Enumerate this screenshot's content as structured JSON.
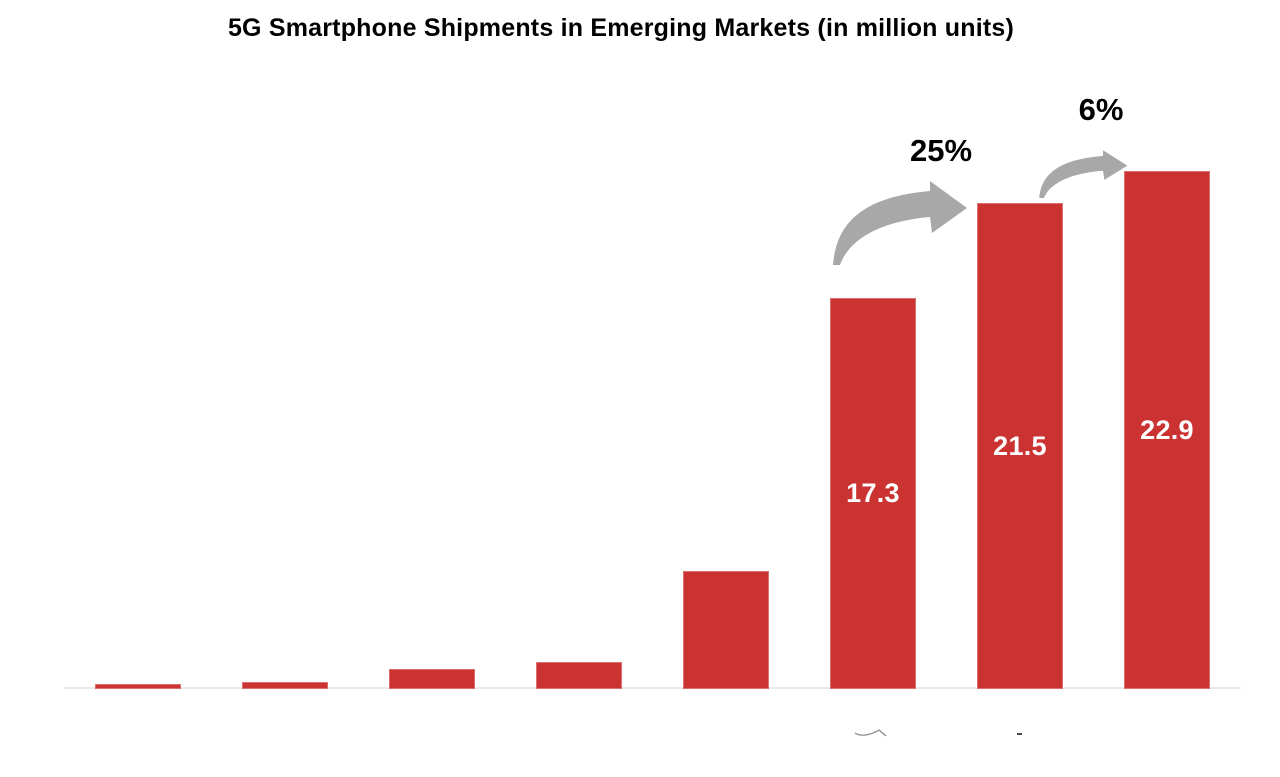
{
  "title": "5G Smartphone Shipments in Emerging Markets (in million units)",
  "colors": {
    "bar": "#cb3232",
    "bar_value_label": "#ffffff",
    "arrow": "#a8a8a8",
    "title_text": "#000000",
    "axis_line": "#e9e9e9"
  },
  "chart_data": {
    "type": "bar",
    "title": "5G Smartphone Shipments in Emerging Markets (in million units)",
    "categories": [
      "",
      "",
      "",
      "",
      "",
      "",
      "",
      ""
    ],
    "values": [
      0.2,
      0.3,
      0.9,
      1.2,
      5.2,
      17.3,
      21.5,
      22.9
    ],
    "bar_labels": [
      "",
      "",
      "",
      "",
      "",
      "17.3",
      "21.5",
      "22.9"
    ],
    "xlabel": "",
    "ylabel": "",
    "ylim": [
      0,
      25
    ],
    "grid": false,
    "legend": "none",
    "axis_tick_labels_visible": false,
    "annotations": [
      {
        "label": "25%",
        "from_bar_index": 5,
        "to_bar_index": 6
      },
      {
        "label": "6%",
        "from_bar_index": 6,
        "to_bar_index": 7
      }
    ]
  }
}
